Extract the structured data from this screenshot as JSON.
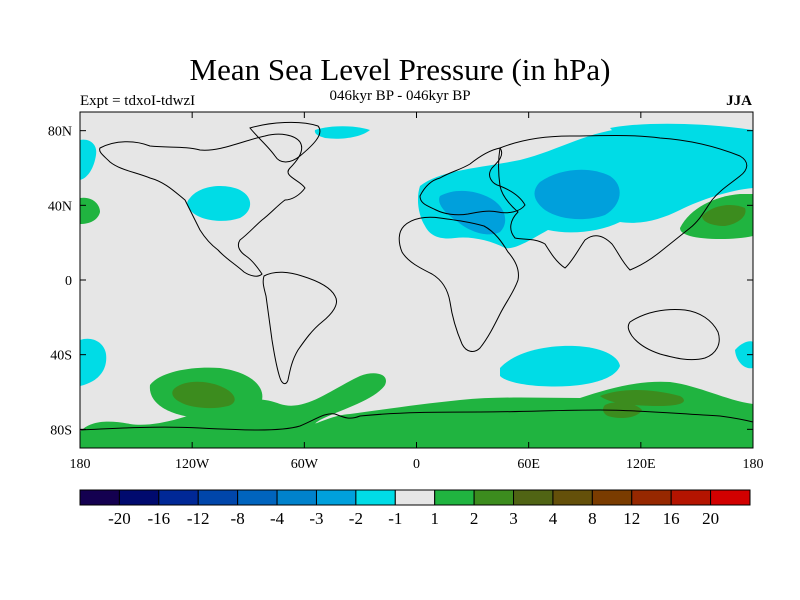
{
  "title": "Mean Sea Level Pressure (in hPa)",
  "subtitle": "046kyr BP - 046kyr BP",
  "left_label": "Expt = tdxoI-tdwzI",
  "right_label": "JJA",
  "map": {
    "projection": "cylindrical-equidistant",
    "lon_range": [
      -180,
      180
    ],
    "lat_range": [
      -90,
      90
    ],
    "background_color": "#e6e6e6",
    "coastline_color": "#000000",
    "x_ticks": [
      {
        "lon": -180,
        "label": "180"
      },
      {
        "lon": -120,
        "label": "120W"
      },
      {
        "lon": -60,
        "label": "60W"
      },
      {
        "lon": 0,
        "label": "0"
      },
      {
        "lon": 60,
        "label": "60E"
      },
      {
        "lon": 120,
        "label": "120E"
      },
      {
        "lon": 180,
        "label": "180"
      }
    ],
    "y_ticks": [
      {
        "lat": 80,
        "label": "80N"
      },
      {
        "lat": 40,
        "label": "40N"
      },
      {
        "lat": 0,
        "label": "0"
      },
      {
        "lat": -40,
        "label": "40S"
      },
      {
        "lat": -80,
        "label": "80S"
      }
    ]
  },
  "colorbar": {
    "colors": [
      "#140050",
      "#000a6e",
      "#002896",
      "#0046aa",
      "#0064be",
      "#0082cc",
      "#00a0dc",
      "#00dce6",
      "#e6e6e6",
      "#20b440",
      "#3c8c1e",
      "#506414",
      "#64500a",
      "#7a3c00",
      "#962800",
      "#b41400",
      "#d20000"
    ],
    "labels": [
      "-20",
      "-16",
      "-12",
      "-8",
      "-4",
      "-3",
      "-2",
      "-1",
      "1",
      "2",
      "3",
      "4",
      "8",
      "12",
      "16",
      "20"
    ]
  },
  "anomaly_regions": [
    {
      "name": "eurasia-negative",
      "color": "#00dce6"
    },
    {
      "name": "eurasia-core-negative",
      "color": "#00a0dc"
    },
    {
      "name": "southern-ocean-positive",
      "color": "#20b440"
    },
    {
      "name": "southern-ocean-core-positive",
      "color": "#3c8c1e"
    },
    {
      "name": "indian-ocean-negative",
      "color": "#00dce6"
    },
    {
      "name": "north-pacific-positive",
      "color": "#20b440"
    },
    {
      "name": "north-atlantic-negative",
      "color": "#00dce6"
    }
  ]
}
